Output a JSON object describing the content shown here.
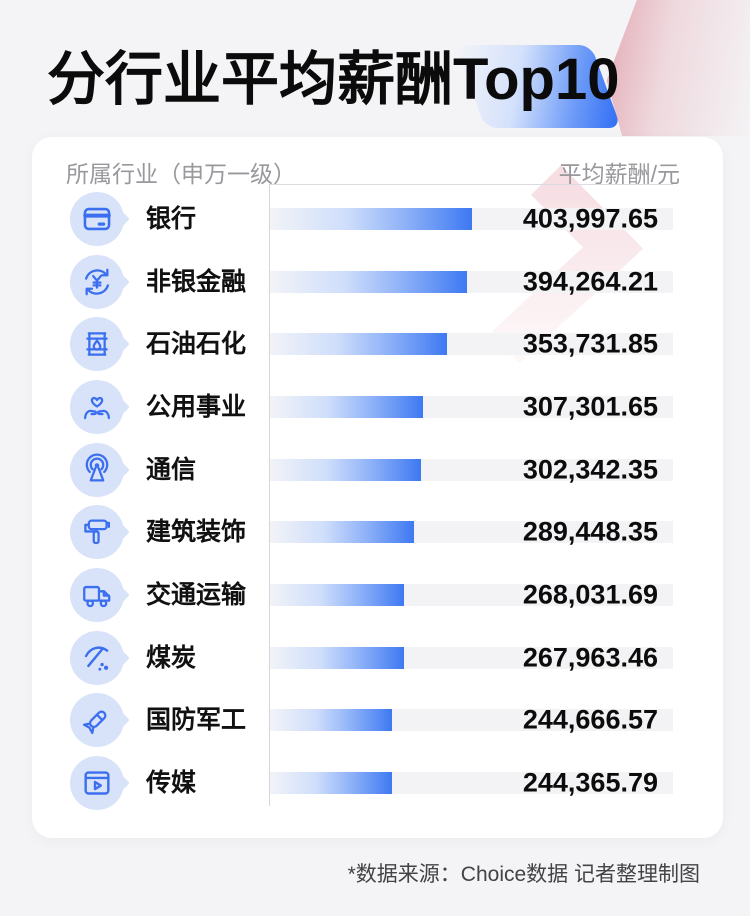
{
  "page": {
    "title": "分行业平均薪酬Top10",
    "background_color": "#f4f4f6"
  },
  "table_header": {
    "industry": "所属行业（申万一级）",
    "salary": "平均薪酬/元"
  },
  "footer": {
    "source_note": "*数据来源：Choice数据 记者整理制图"
  },
  "colors": {
    "accent_blue": "#3e79f2",
    "icon_stroke_blue": "#3b6ff0",
    "icon_bubble_bg": "#d8e3f9",
    "bar_track": "#f3f3f5",
    "deco_rose": "#de95a2",
    "deco_blue": "#2e6bf5",
    "text_dark": "#111111",
    "text_gray": "#98989d"
  },
  "chart_data": {
    "type": "bar",
    "orientation": "horizontal",
    "title": "分行业平均薪酬Top10",
    "category_axis_label": "所属行业（申万一级）",
    "value_axis_label": "平均薪酬/元",
    "grid": false,
    "legend": false,
    "categories": [
      "银行",
      "非银金融",
      "石油石化",
      "公用事业",
      "通信",
      "建筑装饰",
      "交通运输",
      "煤炭",
      "国防军工",
      "传媒"
    ],
    "values": [
      403997.65,
      394264.21,
      353731.85,
      307301.65,
      302342.35,
      289448.35,
      268031.69,
      267963.46,
      244666.57,
      244365.79
    ],
    "value_labels": [
      "403,997.65",
      "394,264.21",
      "353,731.85",
      "307,301.65",
      "302,342.35",
      "289,448.35",
      "268,031.69",
      "267,963.46",
      "244,666.57",
      "244,365.79"
    ],
    "icons": [
      "bank-card-icon",
      "yen-exchange-icon",
      "oil-barrel-icon",
      "hands-heart-icon",
      "broadcast-antenna-icon",
      "paint-roller-icon",
      "truck-icon",
      "pickaxe-coal-icon",
      "missile-icon",
      "media-player-icon"
    ]
  }
}
